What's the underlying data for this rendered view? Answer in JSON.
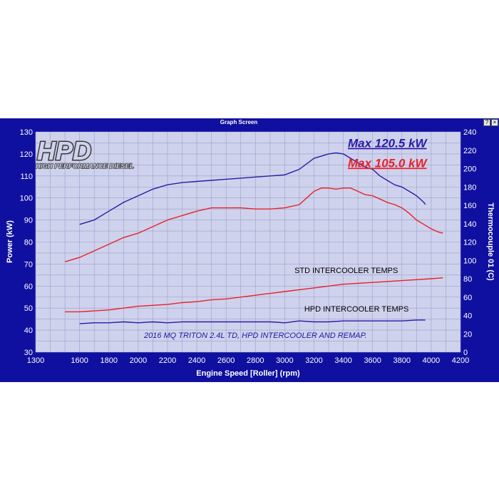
{
  "window": {
    "title": "Graph Screen",
    "help_label": "?",
    "close_label": "×"
  },
  "colors": {
    "background": "#1010a0",
    "plot": "#cfd2ec",
    "grid": "#9aa0cc",
    "power_std": "#e8202a",
    "power_hpd": "#2a1aa8",
    "logo": "#3a3a3a"
  },
  "logo": {
    "mark": "HPD",
    "tagline": "HIGH PERFORMANCE DIESEL"
  },
  "chart_data": {
    "type": "line",
    "title": "",
    "xlabel": "Engine Speed [Roller] (rpm)",
    "ylabel": "Power (kW)",
    "y2label": "Thermocouple 01 (C)",
    "xlim": [
      1300,
      4200
    ],
    "ylim": [
      30,
      130
    ],
    "y2lim": [
      0,
      240
    ],
    "grid": true,
    "x_ticks": [
      1300,
      1600,
      1800,
      2000,
      2200,
      2400,
      2600,
      2800,
      3000,
      3200,
      3400,
      3600,
      3800,
      4000,
      4200
    ],
    "y_ticks": [
      30,
      40,
      50,
      60,
      70,
      80,
      90,
      100,
      110,
      120,
      130
    ],
    "y2_ticks": [
      0,
      20,
      40,
      60,
      80,
      100,
      120,
      140,
      160,
      180,
      200,
      220,
      240
    ],
    "annotations": [
      {
        "text": "Max 120.5 kW",
        "color": "#2a1aa8",
        "x": 3700,
        "y": 123
      },
      {
        "text": "Max 105.0 kW",
        "color": "#e8202a",
        "x": 3700,
        "y": 114
      },
      {
        "text": "STD INTERCOOLER TEMPS",
        "color": "#000000",
        "x": 3420,
        "y": 66
      },
      {
        "text": "HPD INTERCOOLER TEMPS",
        "color": "#000000",
        "x": 3490,
        "y": 48.5
      },
      {
        "text": "2016 MQ TRITON 2.4L TD, HPD INTERCOOLER AND REMAP.",
        "color": "#1a1aa0",
        "x": 2800,
        "y": 36.5
      }
    ],
    "series": [
      {
        "axis": "left",
        "color": "#2a1aa8",
        "x": [
          1600,
          1700,
          1800,
          1900,
          2000,
          2100,
          2200,
          2300,
          2400,
          2500,
          2600,
          2700,
          2800,
          2900,
          3000,
          3100,
          3200,
          3300,
          3350,
          3400,
          3450,
          3500,
          3550,
          3600,
          3650,
          3700,
          3750,
          3800,
          3850,
          3900,
          3950,
          3960
        ],
        "y": [
          88,
          90,
          94,
          98,
          101,
          104,
          106,
          107,
          107.5,
          108,
          108.5,
          109,
          109.5,
          110,
          110.5,
          113,
          118,
          120,
          120.5,
          120,
          118,
          116,
          114,
          113,
          110,
          108,
          106,
          105,
          103,
          101,
          98,
          97
        ]
      },
      {
        "axis": "left",
        "color": "#e8202a",
        "x": [
          1500,
          1550,
          1600,
          1700,
          1800,
          1900,
          2000,
          2100,
          2200,
          2300,
          2400,
          2500,
          2600,
          2700,
          2800,
          2900,
          3000,
          3100,
          3150,
          3200,
          3250,
          3300,
          3350,
          3400,
          3450,
          3500,
          3550,
          3600,
          3650,
          3700,
          3750,
          3800,
          3850,
          3900,
          3950,
          4000,
          4050,
          4080
        ],
        "y": [
          71,
          72,
          73,
          76,
          79,
          82,
          84,
          87,
          90,
          92,
          94,
          95.5,
          95.5,
          95.5,
          95,
          95,
          95.5,
          97,
          100,
          103,
          104.5,
          104.5,
          104,
          104.5,
          104.5,
          103,
          101.5,
          101,
          99.5,
          98,
          97,
          95.5,
          93,
          90,
          88,
          86,
          84.5,
          84
        ]
      },
      {
        "axis": "right",
        "color": "#e8202a",
        "x": [
          1500,
          1600,
          1700,
          1800,
          1900,
          2000,
          2100,
          2200,
          2300,
          2400,
          2500,
          2600,
          2700,
          2800,
          2900,
          3000,
          3100,
          3200,
          3300,
          3400,
          3500,
          3600,
          3700,
          3800,
          3900,
          4000,
          4080
        ],
        "y": [
          44,
          44,
          45,
          46,
          48,
          50,
          51,
          52,
          54,
          55,
          57,
          58,
          60,
          62,
          64,
          66,
          68,
          70,
          72,
          74,
          75,
          76,
          77,
          78,
          79,
          80,
          81
        ]
      },
      {
        "axis": "right",
        "color": "#2a1aa8",
        "x": [
          1600,
          1700,
          1800,
          1900,
          2000,
          2100,
          2200,
          2300,
          2400,
          2500,
          2600,
          2700,
          2800,
          2900,
          3000,
          3100,
          3200,
          3300,
          3400,
          3500,
          3600,
          3700,
          3800,
          3900,
          3960
        ],
        "y": [
          31,
          32,
          32,
          33,
          32,
          33,
          32,
          33,
          33,
          33,
          33,
          33,
          33,
          33,
          32,
          34,
          33,
          33,
          34,
          34,
          34,
          34,
          34,
          35,
          35
        ]
      }
    ]
  }
}
